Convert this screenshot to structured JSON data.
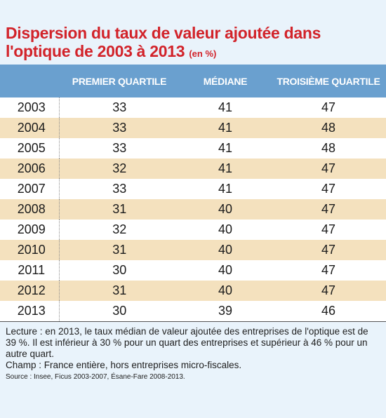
{
  "title": {
    "main": "Dispersion du taux de valeur ajoutée dans l'optique de 2003 à 2013",
    "unit": "(en %)"
  },
  "chart_data": {
    "type": "table",
    "columns": [
      "",
      "PREMIER QUARTILE",
      "MÉDIANE",
      "TROISIÈME QUARTILE"
    ],
    "rows": [
      [
        "2003",
        "33",
        "41",
        "47"
      ],
      [
        "2004",
        "33",
        "41",
        "48"
      ],
      [
        "2005",
        "33",
        "41",
        "48"
      ],
      [
        "2006",
        "32",
        "41",
        "47"
      ],
      [
        "2007",
        "33",
        "41",
        "47"
      ],
      [
        "2008",
        "31",
        "40",
        "47"
      ],
      [
        "2009",
        "32",
        "40",
        "47"
      ],
      [
        "2010",
        "31",
        "40",
        "47"
      ],
      [
        "2011",
        "30",
        "40",
        "47"
      ],
      [
        "2012",
        "31",
        "40",
        "47"
      ],
      [
        "2013",
        "30",
        "39",
        "46"
      ]
    ]
  },
  "notes": {
    "lecture": "Lecture : en 2013, le taux médian de valeur ajoutée des entreprises de l'optique est de 39 %. Il est inférieur à 30 % pour un quart des entreprises et supérieur à 46 % pour un autre quart.",
    "champ": "Champ : France entière, hors entreprises micro-fiscales.",
    "source": "Source : Insee, Ficus 2003-2007, Ésane-Fare 2008-2013."
  },
  "colors": {
    "title": "#d2232a",
    "header_bg": "#6aa0cf",
    "row_alt": "#f4e1be",
    "background": "#e9f3fb"
  }
}
